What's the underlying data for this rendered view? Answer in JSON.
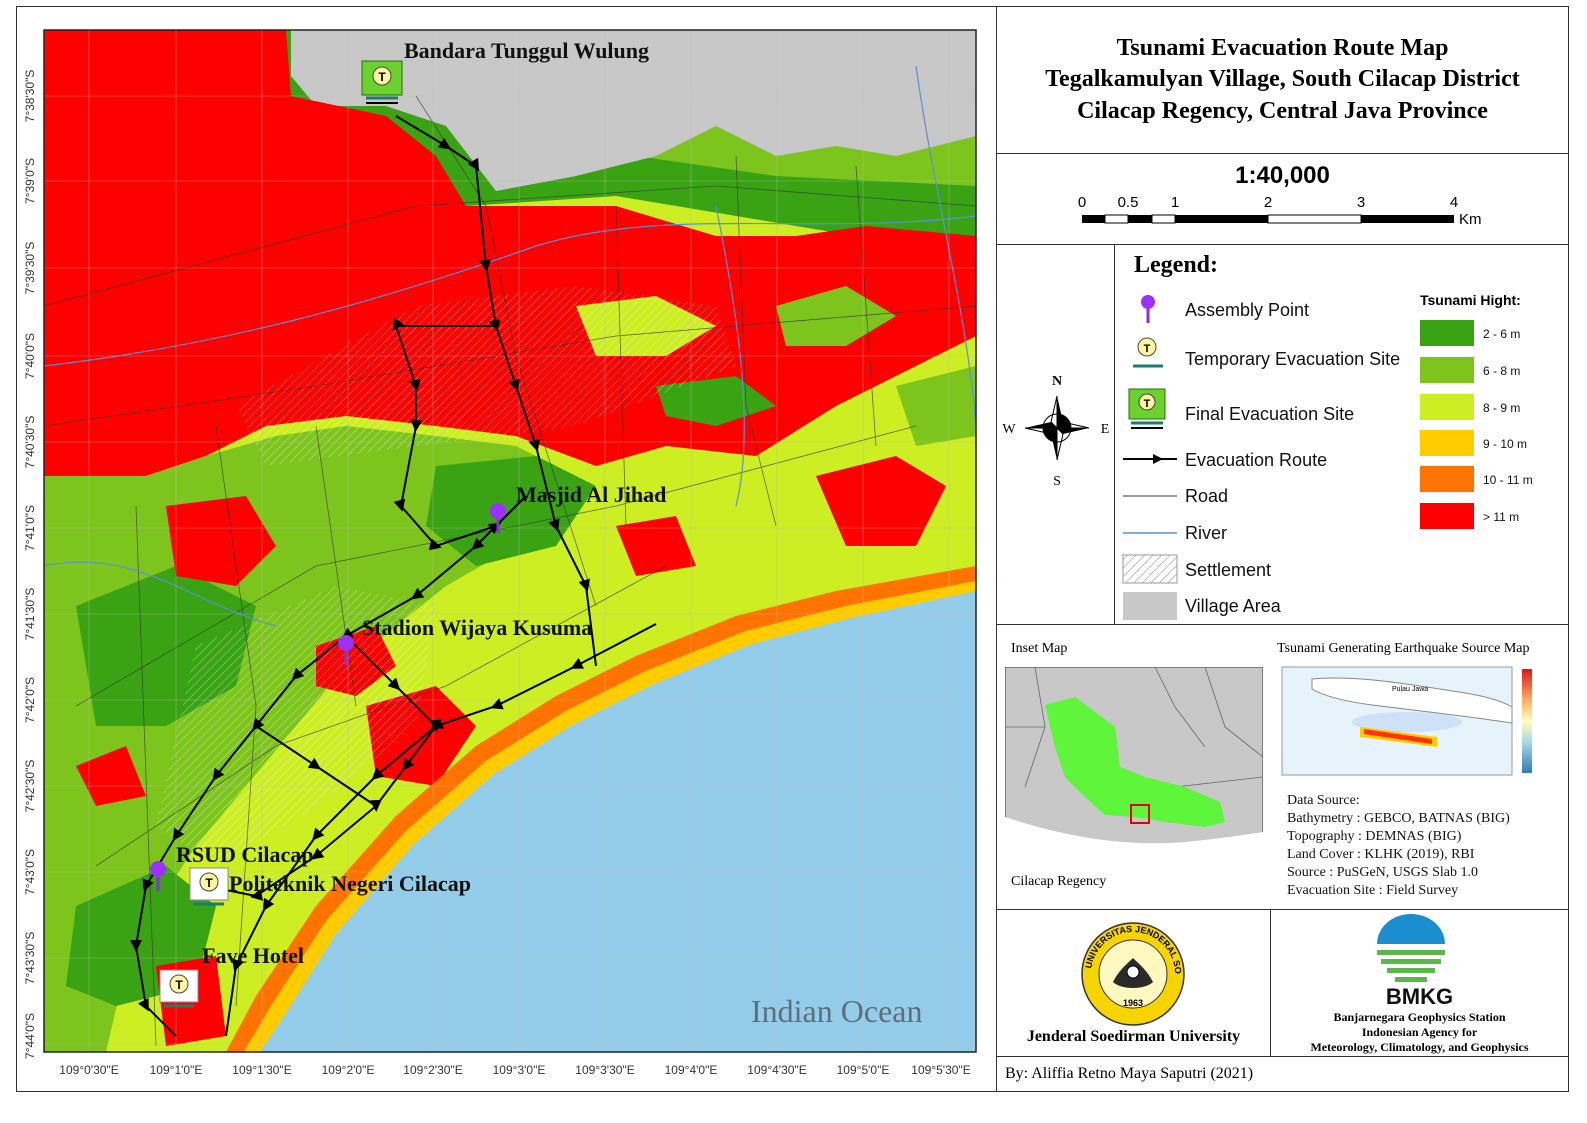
{
  "map": {
    "places": [
      {
        "name": "Bandara Tunggul Wulung"
      },
      {
        "name": "Masjid Al Jihad"
      },
      {
        "name": "Stadion Wijaya Kusuma"
      },
      {
        "name": "RSUD Cilacap"
      },
      {
        "name": "Politeknik Negeri Cilacap"
      },
      {
        "name": "Fave Hotel"
      }
    ],
    "ocean_label": "Indian Ocean",
    "lat_ticks": [
      "7°38'30\"S",
      "7°39'0\"S",
      "7°39'30\"S",
      "7°40'0\"S",
      "7°40'30\"S",
      "7°41'0\"S",
      "7°41'30\"S",
      "7°42'0\"S",
      "7°42'30\"S",
      "7°43'0\"S",
      "7°43'30\"S",
      "7°44'0\"S"
    ],
    "lon_ticks": [
      "109°0'30\"E",
      "109°1'0\"E",
      "109°1'30\"E",
      "109°2'0\"E",
      "109°2'30\"E",
      "109°3'0\"E",
      "109°3'30\"E",
      "109°4'0\"E",
      "109°4'30\"E",
      "109°5'0\"E",
      "109°5'30\"E"
    ],
    "colors": {
      "ocean": "#94cdea",
      "red": "#ff0000",
      "orange": "#ff7300",
      "yellow_orange": "#ffcc00",
      "yellow_green": "#ccee22",
      "light_green": "#7dc51c",
      "dark_green": "#3aa314",
      "village": "#c8c8c8"
    }
  },
  "title": {
    "line1": "Tsunami Evacuation Route Map",
    "line2": "Tegalkamulyan Village, South Cilacap District",
    "line3": "Cilacap Regency, Central Java Province"
  },
  "scale": {
    "ratio": "1:40,000",
    "labels": [
      "0",
      "0.5",
      "1",
      "2",
      "3",
      "4"
    ],
    "unit": "Km"
  },
  "compass": {
    "n": "N",
    "s": "S",
    "e": "E",
    "w": "W"
  },
  "legend": {
    "title": "Legend:",
    "items": [
      "Assembly Point",
      "Temporary Evacuation Site",
      "Final Evacuation Site",
      "Evacuation Route",
      "Road",
      "River",
      "Settlement",
      "Village Area"
    ],
    "hight_title": "Tsunami Hight:",
    "hight_classes": [
      {
        "label": "2 - 6 m",
        "color": "#3aa314"
      },
      {
        "label": "6 - 8 m",
        "color": "#7dc51c"
      },
      {
        "label": "8 - 9 m",
        "color": "#ccee22"
      },
      {
        "label": "9 - 10 m",
        "color": "#ffcc00"
      },
      {
        "label": "10 - 11 m",
        "color": "#ff7300"
      },
      {
        "label": "> 11 m",
        "color": "#ff0000"
      }
    ]
  },
  "inset": {
    "title": "Inset Map",
    "region_label": "Cilacap Regency",
    "eq_title": "Tsunami Generating Earthquake Source Map",
    "eq_island_label": "Pulau Jawa"
  },
  "sources": {
    "heading": "Data Source:",
    "lines": [
      "Bathymetry : GEBCO, BATNAS (BIG)",
      "Topography : DEMNAS (BIG)",
      "Land Cover : KLHK (2019), RBI",
      "Source : PuSGeN, USGS Slab 1.0",
      "Evacuation Site : Field Survey"
    ]
  },
  "logos": {
    "university_name": "Jenderal Soedirman University",
    "university_seal_text": "UNIVERSITAS JENDERAL SOEDIRMAN",
    "university_year": "1963",
    "bmkg": "BMKG",
    "bmkg_lines": [
      "Banjarnegara Geophysics Station",
      "Indonesian Agency for",
      "Meteorology, Climatology, and Geophysics"
    ]
  },
  "author": "By: Aliffia Retno Maya Saputri (2021)"
}
